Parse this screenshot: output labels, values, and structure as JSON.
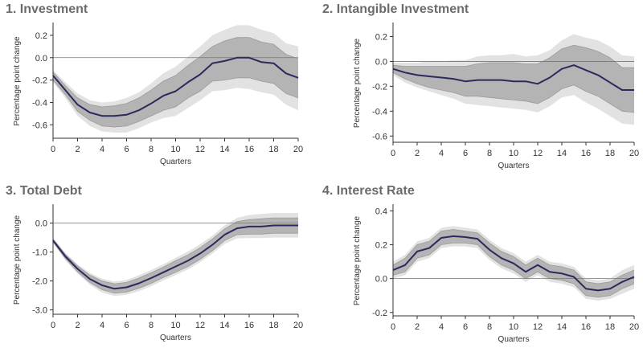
{
  "chart_data": [
    {
      "type": "line",
      "title": "1. Investment",
      "xlabel": "Quarters",
      "ylabel": "Percentage point change",
      "xlim": [
        0,
        20
      ],
      "ylim": [
        -0.72,
        0.3
      ],
      "xticks": [
        0,
        2,
        4,
        6,
        8,
        10,
        12,
        14,
        16,
        18,
        20
      ],
      "xtick_labels": [
        "0",
        "2",
        "4",
        "6",
        "8",
        "10",
        "12",
        "14",
        "16",
        "18",
        "20"
      ],
      "yticks": [
        -0.6,
        -0.4,
        -0.2,
        0.0,
        0.2
      ],
      "ytick_labels": [
        "-0.6",
        "-0.4",
        "-0.2",
        "0.0",
        "0.2"
      ],
      "zero_line": true,
      "grid": false,
      "colors": {
        "line": "#2a2a5e",
        "inner_band": "#b4b4b4",
        "outer_band": "#e2e2e2"
      },
      "x": [
        0,
        1,
        2,
        3,
        4,
        5,
        6,
        7,
        8,
        9,
        10,
        11,
        12,
        13,
        14,
        15,
        16,
        17,
        18,
        19,
        20
      ],
      "series": [
        {
          "role": "estimate",
          "values": [
            -0.16,
            -0.29,
            -0.42,
            -0.49,
            -0.52,
            -0.52,
            -0.51,
            -0.47,
            -0.41,
            -0.34,
            -0.3,
            -0.22,
            -0.15,
            -0.05,
            -0.03,
            0.0,
            0.0,
            -0.04,
            -0.05,
            -0.14,
            -0.18
          ]
        },
        {
          "role": "inner_upper",
          "values": [
            -0.13,
            -0.25,
            -0.36,
            -0.42,
            -0.44,
            -0.43,
            -0.41,
            -0.36,
            -0.29,
            -0.21,
            -0.16,
            -0.07,
            0.01,
            0.1,
            0.15,
            0.18,
            0.18,
            0.14,
            0.12,
            0.03,
            -0.01
          ]
        },
        {
          "role": "inner_lower",
          "values": [
            -0.2,
            -0.33,
            -0.48,
            -0.56,
            -0.61,
            -0.62,
            -0.61,
            -0.57,
            -0.52,
            -0.47,
            -0.44,
            -0.36,
            -0.3,
            -0.21,
            -0.2,
            -0.18,
            -0.18,
            -0.21,
            -0.23,
            -0.32,
            -0.36
          ]
        },
        {
          "role": "outer_upper",
          "values": [
            -0.11,
            -0.22,
            -0.32,
            -0.38,
            -0.4,
            -0.39,
            -0.36,
            -0.31,
            -0.23,
            -0.14,
            -0.08,
            0.01,
            0.1,
            0.2,
            0.25,
            0.29,
            0.29,
            0.25,
            0.22,
            0.13,
            0.1
          ]
        },
        {
          "role": "outer_lower",
          "values": [
            -0.22,
            -0.36,
            -0.52,
            -0.61,
            -0.66,
            -0.67,
            -0.67,
            -0.63,
            -0.58,
            -0.54,
            -0.52,
            -0.45,
            -0.38,
            -0.3,
            -0.29,
            -0.27,
            -0.28,
            -0.31,
            -0.33,
            -0.42,
            -0.47
          ]
        }
      ]
    },
    {
      "type": "line",
      "title": "2. Intangible Investment",
      "xlabel": "Quarters",
      "ylabel": "Percentage point change",
      "xlim": [
        0,
        20
      ],
      "ylim": [
        -0.65,
        0.3
      ],
      "xticks": [
        0,
        2,
        4,
        6,
        8,
        10,
        12,
        14,
        16,
        18,
        20
      ],
      "xtick_labels": [
        "0",
        "2",
        "4",
        "6",
        "8",
        "10",
        "12",
        "14",
        "16",
        "18",
        "20"
      ],
      "yticks": [
        -0.6,
        -0.4,
        -0.2,
        0.0,
        0.2
      ],
      "ytick_labels": [
        "-0.6",
        "-0.4",
        "-0.2",
        "0.0",
        "0.2"
      ],
      "zero_line": true,
      "grid": false,
      "colors": {
        "line": "#2a2a5e",
        "inner_band": "#b4b4b4",
        "outer_band": "#e2e2e2"
      },
      "x": [
        0,
        1,
        2,
        3,
        4,
        5,
        6,
        7,
        8,
        9,
        10,
        11,
        12,
        13,
        14,
        15,
        16,
        17,
        18,
        19,
        20
      ],
      "series": [
        {
          "role": "estimate",
          "values": [
            -0.06,
            -0.09,
            -0.11,
            -0.12,
            -0.13,
            -0.14,
            -0.16,
            -0.15,
            -0.15,
            -0.15,
            -0.16,
            -0.16,
            -0.18,
            -0.13,
            -0.06,
            -0.03,
            -0.07,
            -0.11,
            -0.17,
            -0.23,
            -0.23
          ]
        },
        {
          "role": "inner_upper",
          "values": [
            -0.03,
            -0.04,
            -0.04,
            -0.04,
            -0.04,
            -0.04,
            -0.04,
            -0.02,
            -0.01,
            -0.01,
            -0.01,
            -0.02,
            -0.02,
            0.03,
            0.1,
            0.13,
            0.11,
            0.08,
            0.03,
            -0.05,
            -0.05
          ]
        },
        {
          "role": "inner_lower",
          "values": [
            -0.09,
            -0.14,
            -0.18,
            -0.21,
            -0.23,
            -0.25,
            -0.28,
            -0.28,
            -0.29,
            -0.3,
            -0.31,
            -0.32,
            -0.34,
            -0.29,
            -0.22,
            -0.19,
            -0.24,
            -0.28,
            -0.34,
            -0.4,
            -0.41
          ]
        },
        {
          "role": "outer_upper",
          "values": [
            -0.01,
            -0.01,
            -0.01,
            0.0,
            0.0,
            0.01,
            0.01,
            0.04,
            0.05,
            0.05,
            0.06,
            0.04,
            0.05,
            0.09,
            0.17,
            0.22,
            0.19,
            0.17,
            0.12,
            0.05,
            0.04
          ]
        },
        {
          "role": "outer_lower",
          "values": [
            -0.11,
            -0.17,
            -0.21,
            -0.24,
            -0.27,
            -0.3,
            -0.34,
            -0.35,
            -0.36,
            -0.37,
            -0.38,
            -0.39,
            -0.41,
            -0.36,
            -0.29,
            -0.27,
            -0.33,
            -0.38,
            -0.44,
            -0.5,
            -0.51
          ]
        }
      ]
    },
    {
      "type": "line",
      "title": "3. Total Debt",
      "xlabel": "Quarters",
      "ylabel": "Percentage point change",
      "xlim": [
        0,
        20
      ],
      "ylim": [
        -3.15,
        0.6
      ],
      "xticks": [
        0,
        2,
        4,
        6,
        8,
        10,
        12,
        14,
        16,
        18,
        20
      ],
      "xtick_labels": [
        "0",
        "2",
        "4",
        "6",
        "8",
        "10",
        "12",
        "14",
        "16",
        "18",
        "20"
      ],
      "yticks": [
        -3.0,
        -2.0,
        -1.0,
        0.0
      ],
      "ytick_labels": [
        "-3.0",
        "-2.0",
        "-1.0",
        "0.0"
      ],
      "zero_line": true,
      "grid": false,
      "colors": {
        "line": "#2a2a5e",
        "inner_band": "#b4b4b4",
        "outer_band": "#e2e2e2"
      },
      "x": [
        0,
        1,
        2,
        3,
        4,
        5,
        6,
        7,
        8,
        9,
        10,
        11,
        12,
        13,
        14,
        15,
        16,
        17,
        18,
        19,
        20
      ],
      "series": [
        {
          "role": "estimate",
          "values": [
            -0.6,
            -1.15,
            -1.58,
            -1.93,
            -2.15,
            -2.27,
            -2.22,
            -2.08,
            -1.9,
            -1.7,
            -1.5,
            -1.3,
            -1.05,
            -0.75,
            -0.4,
            -0.18,
            -0.12,
            -0.12,
            -0.08,
            -0.08,
            -0.08
          ]
        },
        {
          "role": "inner_upper",
          "values": [
            -0.55,
            -1.08,
            -1.48,
            -1.8,
            -2.0,
            -2.1,
            -2.05,
            -1.9,
            -1.72,
            -1.52,
            -1.3,
            -1.1,
            -0.85,
            -0.55,
            -0.2,
            0.05,
            0.12,
            0.15,
            0.18,
            0.18,
            0.18
          ]
        },
        {
          "role": "inner_lower",
          "values": [
            -0.65,
            -1.22,
            -1.68,
            -2.05,
            -2.3,
            -2.42,
            -2.38,
            -2.25,
            -2.08,
            -1.88,
            -1.7,
            -1.5,
            -1.25,
            -0.95,
            -0.6,
            -0.4,
            -0.38,
            -0.38,
            -0.35,
            -0.35,
            -0.35
          ]
        },
        {
          "role": "outer_upper",
          "values": [
            -0.52,
            -1.03,
            -1.42,
            -1.72,
            -1.92,
            -2.02,
            -1.96,
            -1.8,
            -1.62,
            -1.42,
            -1.2,
            -0.98,
            -0.73,
            -0.43,
            -0.08,
            0.18,
            0.28,
            0.32,
            0.35,
            0.35,
            0.35
          ]
        },
        {
          "role": "outer_lower",
          "values": [
            -0.68,
            -1.28,
            -1.75,
            -2.13,
            -2.4,
            -2.52,
            -2.48,
            -2.35,
            -2.18,
            -1.98,
            -1.8,
            -1.6,
            -1.35,
            -1.05,
            -0.72,
            -0.53,
            -0.52,
            -0.52,
            -0.5,
            -0.5,
            -0.5
          ]
        }
      ]
    },
    {
      "type": "line",
      "title": "4. Interest Rate",
      "xlabel": "Quarters",
      "ylabel": "Percentage point change",
      "xlim": [
        0,
        20
      ],
      "ylim": [
        -0.22,
        0.43
      ],
      "xticks": [
        0,
        2,
        4,
        6,
        8,
        10,
        12,
        14,
        16,
        18,
        20
      ],
      "xtick_labels": [
        "0",
        "2",
        "4",
        "6",
        "8",
        "10",
        "12",
        "14",
        "16",
        "18",
        "20"
      ],
      "yticks": [
        -0.2,
        0.0,
        0.2,
        0.4
      ],
      "ytick_labels": [
        "-0.2",
        "0.0",
        "0.2",
        "0.4"
      ],
      "zero_line": true,
      "grid": false,
      "colors": {
        "line": "#2a2a5e",
        "inner_band": "#b4b4b4",
        "outer_band": "#e2e2e2"
      },
      "x": [
        0,
        1,
        2,
        3,
        4,
        5,
        6,
        7,
        8,
        9,
        10,
        11,
        12,
        13,
        14,
        15,
        16,
        17,
        18,
        19,
        20
      ],
      "series": [
        {
          "role": "estimate",
          "values": [
            0.05,
            0.08,
            0.16,
            0.18,
            0.24,
            0.25,
            0.245,
            0.235,
            0.17,
            0.12,
            0.09,
            0.04,
            0.08,
            0.04,
            0.03,
            0.01,
            -0.06,
            -0.07,
            -0.06,
            -0.02,
            0.01
          ]
        },
        {
          "role": "inner_upper",
          "values": [
            0.08,
            0.12,
            0.2,
            0.22,
            0.28,
            0.29,
            0.28,
            0.27,
            0.21,
            0.16,
            0.13,
            0.08,
            0.12,
            0.08,
            0.07,
            0.05,
            -0.02,
            -0.03,
            -0.02,
            0.02,
            0.05
          ]
        },
        {
          "role": "inner_lower",
          "values": [
            0.02,
            0.04,
            0.12,
            0.14,
            0.2,
            0.21,
            0.21,
            0.2,
            0.13,
            0.08,
            0.05,
            0.0,
            0.04,
            0.0,
            -0.01,
            -0.03,
            -0.1,
            -0.11,
            -0.1,
            -0.06,
            -0.03
          ]
        },
        {
          "role": "outer_upper",
          "values": [
            0.1,
            0.14,
            0.22,
            0.24,
            0.3,
            0.31,
            0.3,
            0.29,
            0.23,
            0.18,
            0.15,
            0.1,
            0.14,
            0.1,
            0.09,
            0.07,
            0.0,
            -0.01,
            0.0,
            0.05,
            0.08
          ]
        },
        {
          "role": "outer_lower",
          "values": [
            0.0,
            0.02,
            0.1,
            0.12,
            0.18,
            0.19,
            0.19,
            0.18,
            0.11,
            0.06,
            0.03,
            -0.02,
            0.02,
            -0.02,
            -0.03,
            -0.05,
            -0.12,
            -0.13,
            -0.12,
            -0.09,
            -0.06
          ]
        }
      ]
    }
  ]
}
